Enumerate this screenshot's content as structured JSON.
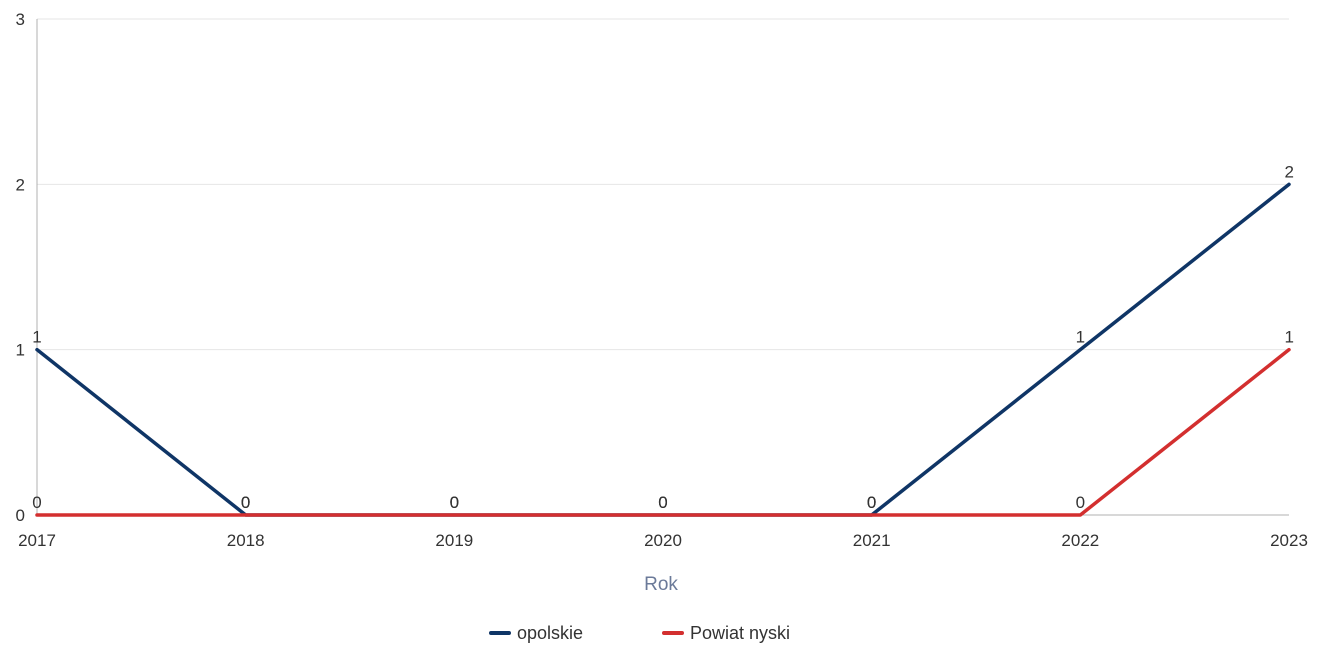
{
  "chart_data": {
    "type": "line",
    "title": "",
    "xlabel": "Rok",
    "ylabel": "",
    "x": [
      "2017",
      "2018",
      "2019",
      "2020",
      "2021",
      "2022",
      "2023"
    ],
    "ylim": [
      0,
      3
    ],
    "yticks": [
      "0",
      "1",
      "2",
      "3"
    ],
    "grid": true,
    "legend_position": "bottom-center",
    "series": [
      {
        "name": "opolskie",
        "values": [
          1,
          0,
          0,
          0,
          0,
          1,
          2
        ],
        "color": "#0f3566"
      },
      {
        "name": "Powiat nyski",
        "values": [
          0,
          0,
          0,
          0,
          0,
          0,
          1
        ],
        "color": "#d32f2f"
      }
    ]
  }
}
